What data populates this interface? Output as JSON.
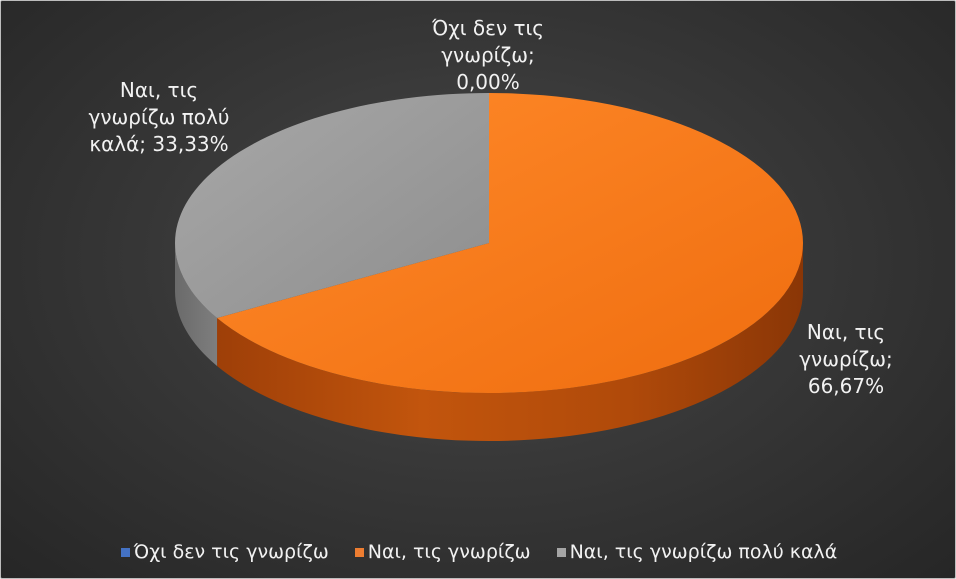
{
  "chart_data": {
    "type": "pie",
    "variant": "3d",
    "slices": [
      {
        "label": "Όχι δεν τις γνωρίζω",
        "value": 0.0,
        "value_label": "0,00%",
        "color": "#4472C4"
      },
      {
        "label": "Ναι, τις γνωρίζω",
        "value": 66.67,
        "value_label": "66,67%",
        "color": "#ED7D31"
      },
      {
        "label": "Ναι, τις γνωρίζω πολύ καλά",
        "value": 33.33,
        "value_label": "33,33%",
        "color": "#A5A5A5"
      }
    ],
    "data_labels": [
      {
        "lines": [
          "Όχι δεν τις",
          "γνωρίζω;",
          "0,00%"
        ]
      },
      {
        "lines": [
          "Ναι, τις",
          "γνωρίζω;",
          "66,67%"
        ]
      },
      {
        "lines": [
          "Ναι, τις",
          "γνωρίζω πολύ",
          "καλά; 33,33%"
        ]
      }
    ],
    "legend": {
      "position": "bottom",
      "items": [
        "Όχι δεν τις γνωρίζω",
        "Ναι, τις γνωρίζω",
        "Ναι, τις γνωρίζω πολύ καλά"
      ]
    },
    "background": "#333333"
  }
}
